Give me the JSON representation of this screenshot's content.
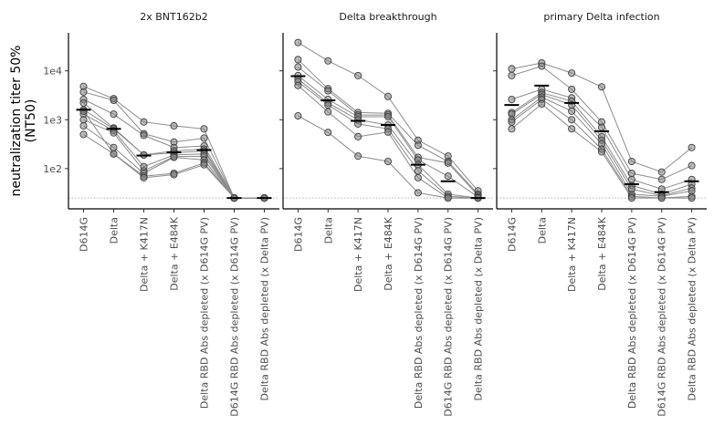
{
  "figure": {
    "ylabel_line1": "neutralization titer 50%",
    "ylabel_line2": "(NT50)"
  },
  "chart_data": {
    "type": "scatter",
    "subtype": "paired dot plot with connecting lines and median bars, faceted",
    "y_scale": "log10",
    "ylim": [
      15,
      60000
    ],
    "y_ticks": [
      100,
      1000,
      10000
    ],
    "y_tick_labels": [
      "1e2",
      "1e3",
      "1e4"
    ],
    "detection_limit": 25,
    "categories": [
      "D614G",
      "Delta",
      "Delta + K417N",
      "Delta + E484K",
      "Delta RBD Abs depleted (x D614G PV)",
      "D614G RBD Abs depleted (x D614G PV)",
      "Delta RBD Abs depleted (x Delta PV)"
    ],
    "panels": [
      {
        "title": "2x BNT162b2",
        "median": [
          1600,
          650,
          185,
          215,
          240,
          25,
          25
        ],
        "subjects": [
          [
            4800,
            2700,
            900,
            750,
            650,
            25,
            25
          ],
          [
            3700,
            2500,
            520,
            350,
            420,
            25,
            25
          ],
          [
            2600,
            1300,
            480,
            270,
            290,
            25,
            25
          ],
          [
            2200,
            680,
            190,
            230,
            250,
            25,
            25
          ],
          [
            1600,
            650,
            190,
            210,
            230,
            25,
            25
          ],
          [
            1300,
            600,
            110,
            190,
            200,
            25,
            25
          ],
          [
            1000,
            540,
            90,
            175,
            180,
            25,
            25
          ],
          [
            750,
            270,
            80,
            170,
            150,
            25,
            25
          ],
          [
            500,
            200,
            70,
            80,
            130,
            25,
            25
          ],
          [
            1500,
            200,
            65,
            75,
            120,
            25,
            25
          ]
        ]
      },
      {
        "title": "Delta breakthrough",
        "median": [
          7800,
          2500,
          950,
          780,
          120,
          55,
          25
        ],
        "subjects": [
          [
            38000,
            16000,
            8000,
            3000,
            380,
            180,
            35
          ],
          [
            17000,
            4300,
            1400,
            1350,
            300,
            140,
            30
          ],
          [
            12000,
            3900,
            1250,
            1250,
            170,
            130,
            28
          ],
          [
            8000,
            2600,
            1150,
            1150,
            150,
            70,
            26
          ],
          [
            6800,
            2200,
            1000,
            780,
            120,
            30,
            25
          ],
          [
            6000,
            2000,
            820,
            650,
            90,
            27,
            25
          ],
          [
            5000,
            1450,
            450,
            560,
            65,
            25,
            25
          ],
          [
            1200,
            550,
            180,
            140,
            32,
            25,
            25
          ]
        ]
      },
      {
        "title": "primary Delta infection",
        "median": [
          2000,
          5000,
          2200,
          580,
          48,
          33,
          55
        ],
        "subjects": [
          [
            11000,
            14500,
            9000,
            4700,
            140,
            85,
            270
          ],
          [
            8000,
            12500,
            4200,
            900,
            80,
            60,
            115
          ],
          [
            2600,
            4200,
            2800,
            700,
            60,
            38,
            60
          ],
          [
            1400,
            3600,
            2400,
            450,
            45,
            30,
            48
          ],
          [
            1300,
            3300,
            2000,
            380,
            38,
            28,
            40
          ],
          [
            1000,
            2900,
            1500,
            320,
            30,
            27,
            35
          ],
          [
            900,
            2600,
            1000,
            250,
            27,
            25,
            27
          ],
          [
            650,
            2100,
            650,
            220,
            25,
            25,
            25
          ]
        ]
      }
    ]
  }
}
